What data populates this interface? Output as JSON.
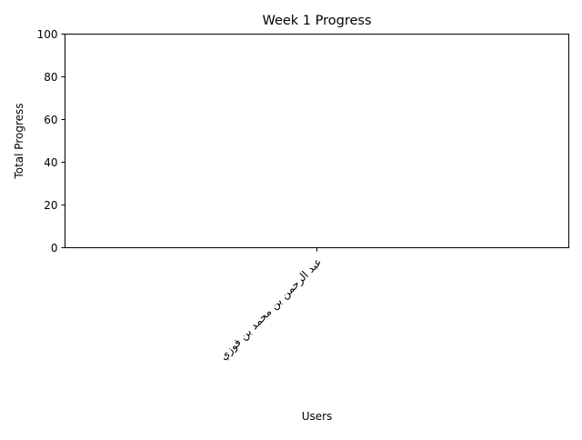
{
  "chart_data": {
    "type": "bar",
    "title": "Week 1 Progress",
    "xlabel": "Users",
    "ylabel": "Total Progress",
    "ylim": [
      0,
      100
    ],
    "yticks": [
      0,
      20,
      40,
      60,
      80,
      100
    ],
    "categories": [
      "عبد الرحمن بن محمد بن فوزي"
    ],
    "values": [
      0
    ],
    "grid": false,
    "legend": "none",
    "colors": {
      "bar": "#1f77b4",
      "axis": "#000000"
    }
  }
}
